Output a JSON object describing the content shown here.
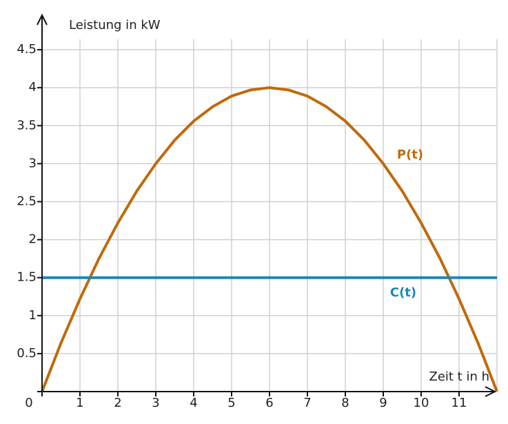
{
  "chart_data": {
    "type": "line",
    "y_label": "Leistung in kW",
    "x_label": "Zeit t in h",
    "origin_label": "0",
    "xlim": [
      0,
      12
    ],
    "ylim": [
      0,
      5
    ],
    "xticks": [
      1,
      2,
      3,
      4,
      5,
      6,
      7,
      8,
      9,
      10,
      11
    ],
    "yticks": [
      0.5,
      1,
      1.5,
      2,
      2.5,
      3,
      3.5,
      4,
      4.5
    ],
    "grid": true,
    "series": [
      {
        "name": "P(t)",
        "color": "#bf6a0c",
        "x": [
          0,
          0.5,
          1,
          1.5,
          2,
          2.5,
          3,
          3.5,
          4,
          4.5,
          5,
          5.5,
          6,
          6.5,
          7,
          7.5,
          8,
          8.5,
          9,
          9.5,
          10,
          10.5,
          11,
          11.5,
          12
        ],
        "values": [
          0,
          0.64,
          1.22,
          1.75,
          2.22,
          2.64,
          3,
          3.31,
          3.56,
          3.75,
          3.89,
          3.97,
          4,
          3.97,
          3.89,
          3.75,
          3.56,
          3.31,
          3,
          2.64,
          2.22,
          1.75,
          1.22,
          0.64,
          0
        ]
      },
      {
        "name": "C(t)",
        "color": "#1b87b8",
        "x": [
          0,
          12
        ],
        "values": [
          1.5,
          1.5
        ]
      }
    ]
  }
}
